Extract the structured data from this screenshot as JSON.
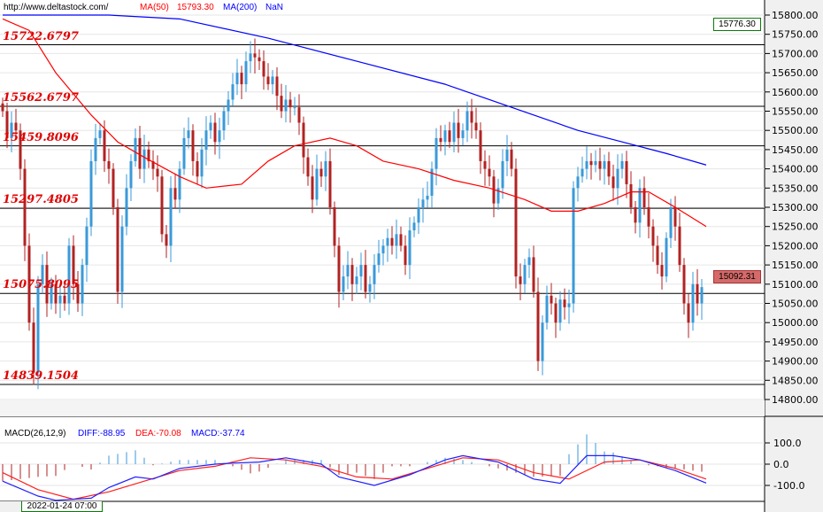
{
  "header": {
    "url": "http://www.deltastock.com/",
    "ma50_label": "MA(50)",
    "ma50_value": "15793.30",
    "ma200_label": "MA(200)",
    "ma200_value": "NaN"
  },
  "macd_header": {
    "title": "MACD(26,12,9)",
    "diff": "DIFF:-88.95",
    "dea": "DEA:-70.08",
    "macd": "MACD:-37.74"
  },
  "time_label": "2022-01-24 07:00",
  "price_tags": {
    "top": "15776.30",
    "last": "15092.31"
  },
  "colors": {
    "up": "#3a9ad9",
    "down": "#b22222",
    "ma50": "#ff0000",
    "ma200": "#0000ff"
  },
  "chart_data": {
    "type": "candlestick",
    "price_axis": {
      "ylim": [
        14800,
        15800
      ],
      "ticks": [
        "15800.00",
        "15750.00",
        "15700.00",
        "15650.00",
        "15600.00",
        "15550.00",
        "15500.00",
        "15450.00",
        "15400.00",
        "15350.00",
        "15300.00",
        "15250.00",
        "15200.00",
        "15150.00",
        "15100.00",
        "15050.00",
        "15000.00",
        "14950.00",
        "14900.00",
        "14850.00",
        "14800.00"
      ]
    },
    "levels": [
      "15722.6797",
      "15562.6797",
      "15459.8096",
      "15297.4805",
      "15075.8095",
      "14839.1504"
    ],
    "closes": [
      15550,
      15480,
      15520,
      15500,
      15400,
      15200,
      15000,
      14870,
      15100,
      15150,
      15050,
      15100,
      15050,
      15070,
      15050,
      15200,
      15100,
      15050,
      15150,
      15250,
      15420,
      15480,
      15500,
      15420,
      15400,
      15300,
      15080,
      15250,
      15350,
      15420,
      15480,
      15400,
      15450,
      15420,
      15400,
      15380,
      15230,
      15200,
      15350,
      15320,
      15400,
      15480,
      15500,
      15420,
      15380,
      15450,
      15500,
      15520,
      15470,
      15500,
      15550,
      15580,
      15620,
      15650,
      15620,
      15680,
      15700,
      15690,
      15680,
      15640,
      15620,
      15640,
      15590,
      15550,
      15580,
      15560,
      15560,
      15520,
      15430,
      15380,
      15320,
      15400,
      15380,
      15420,
      15300,
      15200,
      15080,
      15120,
      15150,
      15100,
      15120,
      15150,
      15080,
      15100,
      15150,
      15180,
      15200,
      15220,
      15200,
      15230,
      15200,
      15150,
      15240,
      15260,
      15300,
      15320,
      15330,
      15400,
      15480,
      15470,
      15500,
      15470,
      15520,
      15480,
      15500,
      15550,
      15520,
      15500,
      15420,
      15400,
      15380,
      15310,
      15350,
      15420,
      15450,
      15400,
      15120,
      15100,
      15150,
      15170,
      15080,
      14900,
      15000,
      15070,
      15050,
      15000,
      15060,
      15040,
      15050,
      15350,
      15380,
      15400,
      15420,
      15410,
      15420,
      15400,
      15420,
      15380,
      15350,
      15400,
      15420,
      15360,
      15300,
      15260,
      15350,
      15300,
      15250,
      15200,
      15150,
      15120,
      15220,
      15300,
      15250,
      15150,
      15050,
      15000,
      15100,
      15050,
      15092.31
    ],
    "ma50": [
      [
        0,
        15790
      ],
      [
        6,
        15760
      ],
      [
        12,
        15650
      ],
      [
        20,
        15540
      ],
      [
        26,
        15470
      ],
      [
        32,
        15430
      ],
      [
        40,
        15380
      ],
      [
        46,
        15350
      ],
      [
        54,
        15360
      ],
      [
        60,
        15420
      ],
      [
        66,
        15460
      ],
      [
        74,
        15480
      ],
      [
        80,
        15460
      ],
      [
        86,
        15420
      ],
      [
        94,
        15400
      ],
      [
        102,
        15370
      ],
      [
        110,
        15350
      ],
      [
        118,
        15320
      ],
      [
        124,
        15290
      ],
      [
        130,
        15290
      ],
      [
        136,
        15310
      ],
      [
        142,
        15340
      ],
      [
        146,
        15340
      ],
      [
        152,
        15300
      ],
      [
        159,
        15250
      ]
    ],
    "ma200": [
      [
        0,
        15800
      ],
      [
        24,
        15800
      ],
      [
        40,
        15790
      ],
      [
        60,
        15740
      ],
      [
        80,
        15680
      ],
      [
        100,
        15620
      ],
      [
        110,
        15580
      ],
      [
        120,
        15540
      ],
      [
        130,
        15500
      ],
      [
        140,
        15470
      ],
      [
        150,
        15440
      ],
      [
        159,
        15410
      ]
    ],
    "macd_axis": {
      "ticks": [
        "100.0",
        "0.0",
        "-100.0"
      ]
    },
    "diff": [
      [
        0,
        -80
      ],
      [
        8,
        -150
      ],
      [
        12,
        -170
      ],
      [
        20,
        -160
      ],
      [
        24,
        -110
      ],
      [
        30,
        -60
      ],
      [
        34,
        -70
      ],
      [
        40,
        -20
      ],
      [
        48,
        0
      ],
      [
        52,
        5
      ],
      [
        58,
        10
      ],
      [
        64,
        30
      ],
      [
        72,
        0
      ],
      [
        76,
        -60
      ],
      [
        84,
        -100
      ],
      [
        92,
        -50
      ],
      [
        100,
        20
      ],
      [
        104,
        40
      ],
      [
        112,
        10
      ],
      [
        120,
        -70
      ],
      [
        126,
        -90
      ],
      [
        132,
        40
      ],
      [
        138,
        40
      ],
      [
        144,
        20
      ],
      [
        152,
        -30
      ],
      [
        159,
        -88.95
      ]
    ],
    "dea": [
      [
        0,
        -40
      ],
      [
        8,
        -120
      ],
      [
        16,
        -165
      ],
      [
        24,
        -130
      ],
      [
        32,
        -80
      ],
      [
        40,
        -30
      ],
      [
        48,
        -10
      ],
      [
        56,
        30
      ],
      [
        64,
        20
      ],
      [
        72,
        -10
      ],
      [
        80,
        -60
      ],
      [
        88,
        -70
      ],
      [
        96,
        -20
      ],
      [
        104,
        30
      ],
      [
        112,
        20
      ],
      [
        120,
        -40
      ],
      [
        128,
        -70
      ],
      [
        136,
        10
      ],
      [
        144,
        20
      ],
      [
        152,
        -20
      ],
      [
        159,
        -70.08
      ]
    ]
  }
}
